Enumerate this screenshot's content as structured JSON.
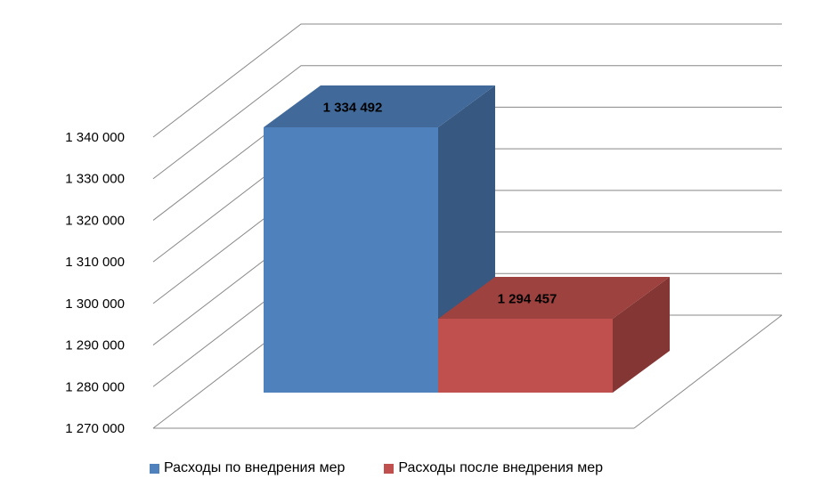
{
  "chart_data": {
    "type": "bar",
    "categories": [
      ""
    ],
    "series": [
      {
        "name": "Расходы по внедрения мер",
        "values": [
          1334492
        ],
        "label": "1 334 492",
        "color": "#4F81BD"
      },
      {
        "name": "Расходы после внедрения мер",
        "values": [
          1294457
        ],
        "label": "1 294 457",
        "color": "#C0504D"
      }
    ],
    "y_ticks": [
      {
        "value": 1270000,
        "label": "1 270 000"
      },
      {
        "value": 1280000,
        "label": "1 280 000"
      },
      {
        "value": 1290000,
        "label": "1 290 000"
      },
      {
        "value": 1300000,
        "label": "1 300 000"
      },
      {
        "value": 1310000,
        "label": "1 310 000"
      },
      {
        "value": 1320000,
        "label": "1 320 000"
      },
      {
        "value": 1330000,
        "label": "1 330 000"
      },
      {
        "value": 1340000,
        "label": "1 340 000"
      }
    ],
    "ylim": [
      1270000,
      1340000
    ],
    "grid": true,
    "legend_position": "bottom",
    "title": "",
    "xlabel": "",
    "ylabel": ""
  }
}
